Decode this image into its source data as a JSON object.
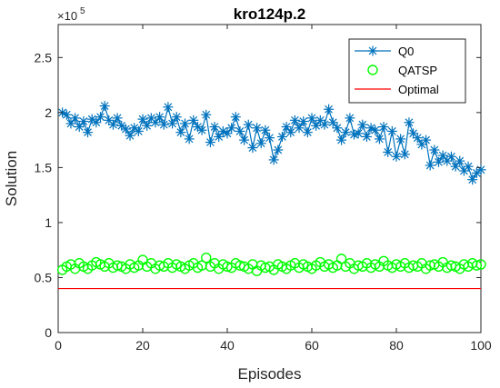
{
  "chart_data": {
    "type": "line",
    "title": "kro124p.2",
    "xlabel": "Episodes",
    "ylabel": "Solution",
    "y_multiplier_base": "×10",
    "y_multiplier_exp": "5",
    "xlim": [
      0,
      100
    ],
    "ylim": [
      0,
      2.8
    ],
    "xticks": [
      0,
      20,
      40,
      60,
      80,
      100
    ],
    "yticks": [
      0,
      0.5,
      1,
      1.5,
      2,
      2.5
    ],
    "xtick_labels": [
      "0",
      "20",
      "40",
      "60",
      "80",
      "100"
    ],
    "ytick_labels": [
      "0",
      "0.5",
      "1",
      "1.5",
      "2",
      "2.5"
    ],
    "grid": false,
    "legend_position": "top-right",
    "x": [
      1,
      2,
      3,
      4,
      5,
      6,
      7,
      8,
      9,
      10,
      11,
      12,
      13,
      14,
      15,
      16,
      17,
      18,
      19,
      20,
      21,
      22,
      23,
      24,
      25,
      26,
      27,
      28,
      29,
      30,
      31,
      32,
      33,
      34,
      35,
      36,
      37,
      38,
      39,
      40,
      41,
      42,
      43,
      44,
      45,
      46,
      47,
      48,
      49,
      50,
      51,
      52,
      53,
      54,
      55,
      56,
      57,
      58,
      59,
      60,
      61,
      62,
      63,
      64,
      65,
      66,
      67,
      68,
      69,
      70,
      71,
      72,
      73,
      74,
      75,
      76,
      77,
      78,
      79,
      80,
      81,
      82,
      83,
      84,
      85,
      86,
      87,
      88,
      89,
      90,
      91,
      92,
      93,
      94,
      95,
      96,
      97,
      98,
      99,
      100
    ],
    "series": [
      {
        "name": "Q0",
        "style": "line-asterisk",
        "color": "#0072BD",
        "values": [
          2.0,
          1.98,
          1.9,
          1.95,
          1.87,
          1.92,
          1.82,
          1.94,
          1.91,
          1.96,
          2.06,
          1.93,
          1.89,
          1.95,
          1.88,
          1.85,
          1.79,
          1.86,
          1.83,
          1.94,
          1.88,
          1.95,
          1.91,
          1.96,
          1.89,
          2.05,
          1.9,
          1.96,
          1.82,
          1.9,
          1.76,
          1.93,
          1.87,
          1.84,
          1.98,
          1.73,
          1.87,
          1.78,
          1.83,
          1.81,
          1.86,
          1.96,
          1.83,
          1.75,
          1.89,
          1.68,
          1.86,
          1.72,
          1.84,
          1.77,
          1.57,
          1.66,
          1.78,
          1.87,
          1.82,
          1.93,
          1.86,
          1.92,
          1.82,
          1.95,
          1.88,
          1.93,
          1.89,
          2.03,
          1.91,
          1.86,
          1.75,
          1.82,
          1.95,
          1.8,
          1.81,
          1.89,
          1.78,
          1.86,
          1.84,
          1.76,
          1.87,
          1.64,
          1.83,
          1.6,
          1.76,
          1.62,
          1.91,
          1.81,
          1.77,
          1.71,
          1.75,
          1.52,
          1.66,
          1.55,
          1.61,
          1.56,
          1.6,
          1.51,
          1.56,
          1.47,
          1.51,
          1.39,
          1.45,
          1.48
        ]
      },
      {
        "name": "QATSP",
        "style": "marker-circle",
        "color": "#00FF00",
        "values": [
          0.57,
          0.6,
          0.62,
          0.58,
          0.63,
          0.6,
          0.58,
          0.61,
          0.64,
          0.62,
          0.6,
          0.63,
          0.59,
          0.61,
          0.6,
          0.58,
          0.62,
          0.59,
          0.61,
          0.66,
          0.6,
          0.63,
          0.58,
          0.61,
          0.6,
          0.63,
          0.59,
          0.62,
          0.6,
          0.58,
          0.61,
          0.63,
          0.59,
          0.61,
          0.68,
          0.6,
          0.63,
          0.58,
          0.62,
          0.6,
          0.59,
          0.63,
          0.61,
          0.6,
          0.58,
          0.62,
          0.56,
          0.61,
          0.59,
          0.6,
          0.57,
          0.62,
          0.6,
          0.58,
          0.61,
          0.63,
          0.59,
          0.62,
          0.6,
          0.58,
          0.61,
          0.64,
          0.6,
          0.62,
          0.59,
          0.61,
          0.67,
          0.6,
          0.63,
          0.58,
          0.61,
          0.6,
          0.63,
          0.59,
          0.62,
          0.6,
          0.65,
          0.61,
          0.59,
          0.62,
          0.6,
          0.63,
          0.59,
          0.61,
          0.6,
          0.63,
          0.58,
          0.61,
          0.62,
          0.6,
          0.64,
          0.59,
          0.61,
          0.6,
          0.58,
          0.62,
          0.6,
          0.63,
          0.61,
          0.62
        ]
      },
      {
        "name": "Optimal",
        "style": "line",
        "color": "#FF0000",
        "constant": 0.4
      }
    ]
  }
}
